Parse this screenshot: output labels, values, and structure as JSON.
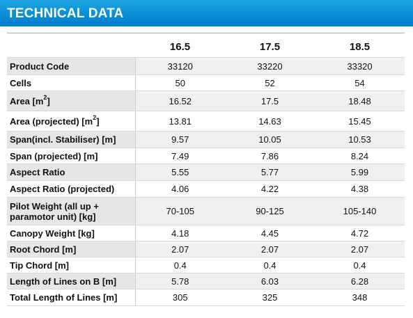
{
  "header": {
    "title": "TECHNICAL DATA"
  },
  "table": {
    "columns": [
      "16.5",
      "17.5",
      "18.5"
    ],
    "rows": [
      {
        "label": "Product Code",
        "values": [
          "33120",
          "33220",
          "33320"
        ]
      },
      {
        "label": "Cells",
        "values": [
          "50",
          "52",
          "54"
        ]
      },
      {
        "label": "Area [m",
        "label_sup": "2",
        "label_after": "]",
        "values": [
          "16.52",
          "17.5",
          "18.48"
        ]
      },
      {
        "label": "Area (projected) [m",
        "label_sup": "2",
        "label_after": "]",
        "values": [
          "13.81",
          "14.63",
          "15.45"
        ]
      },
      {
        "label": "Span(incl. Stabiliser) [m]",
        "values": [
          "9.57",
          "10.05",
          "10.53"
        ]
      },
      {
        "label": "Span (projected) [m]",
        "values": [
          "7.49",
          "7.86",
          "8.24"
        ]
      },
      {
        "label": "Aspect Ratio",
        "values": [
          "5.55",
          "5.77",
          "5.99"
        ]
      },
      {
        "label": "Aspect Ratio (projected)",
        "values": [
          "4.06",
          "4.22",
          "4.38"
        ]
      },
      {
        "label": "Pilot Weight (all up + paramotor unit) [kg]",
        "values": [
          "70-105",
          "90-125",
          "105-140"
        ]
      },
      {
        "label": "Canopy Weight [kg]",
        "values": [
          "4.18",
          "4.45",
          "4.72"
        ]
      },
      {
        "label": "Root Chord [m]",
        "values": [
          "2.07",
          "2.07",
          "2.07"
        ]
      },
      {
        "label": "Tip Chord [m]",
        "values": [
          "0.4",
          "0.4",
          "0.4"
        ]
      },
      {
        "label": "Length of Lines on B [m]",
        "values": [
          "5.78",
          "6.03",
          "6.28"
        ]
      },
      {
        "label": "Total Length of Lines [m]",
        "values": [
          "305",
          "325",
          "348"
        ]
      }
    ]
  }
}
